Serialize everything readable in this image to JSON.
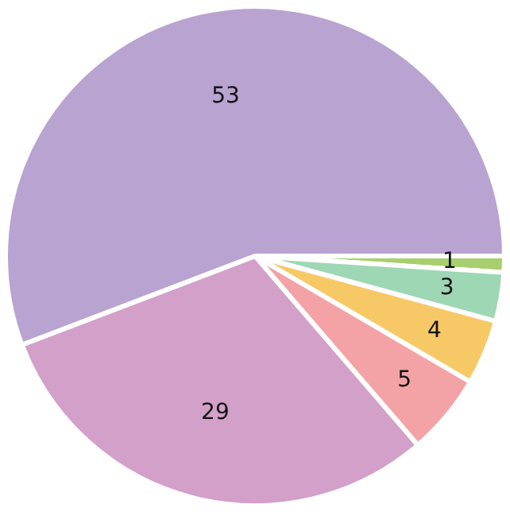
{
  "chart_data": {
    "type": "pie",
    "categories": [
      null,
      null,
      null,
      null,
      null,
      null
    ],
    "values": [
      1,
      3,
      4,
      5,
      29,
      53
    ],
    "colors": [
      "#a8cf6f",
      "#9ed7b4",
      "#f7c866",
      "#f3a3a5",
      "#d3a0c9",
      "#b9a3d1"
    ],
    "data_labels": true,
    "legend": false
  }
}
